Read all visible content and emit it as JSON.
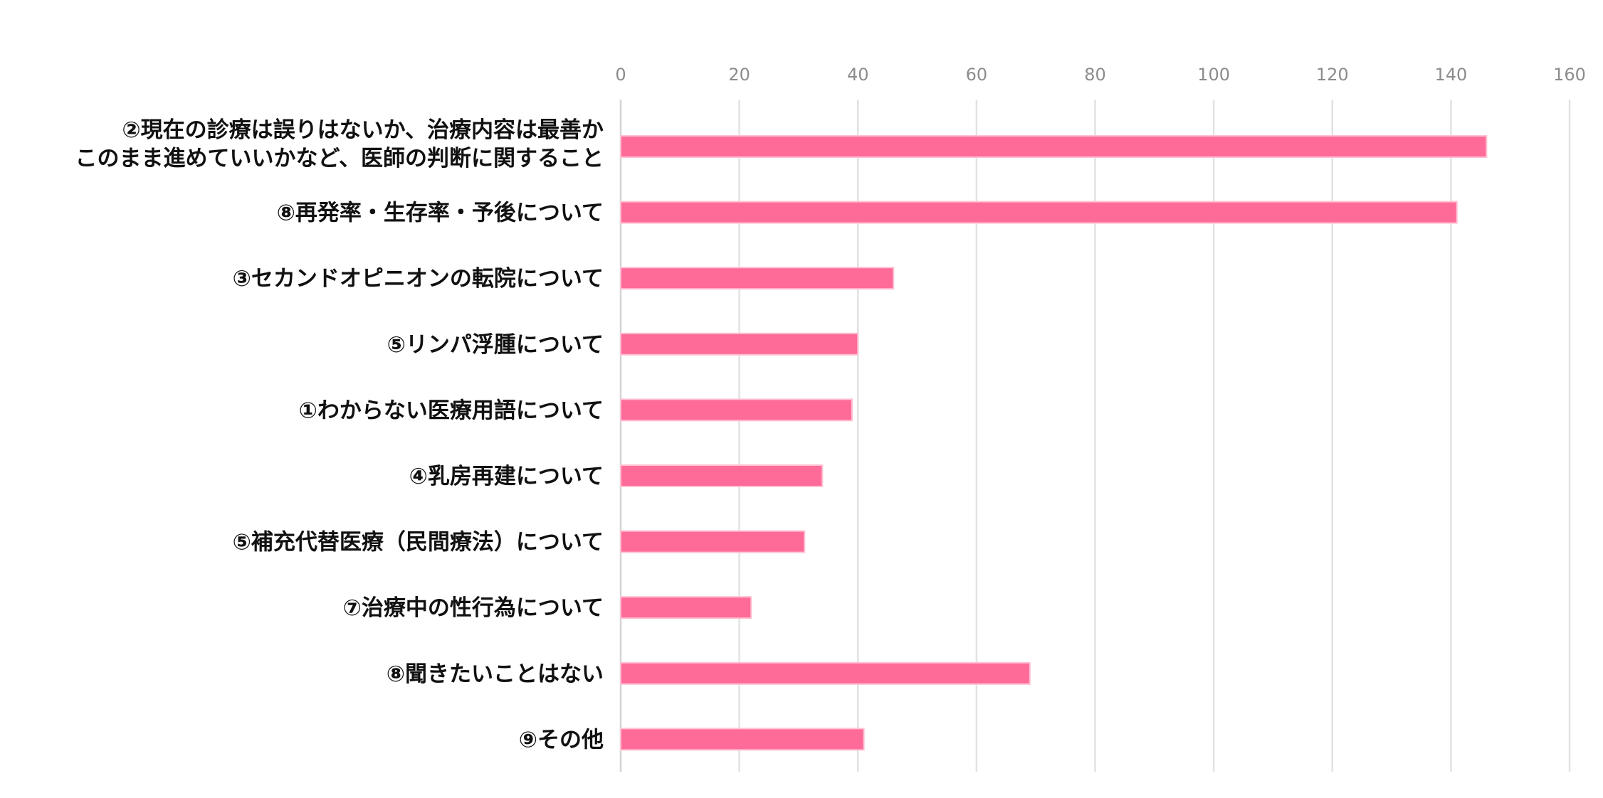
{
  "chart_data": {
    "type": "bar",
    "orientation": "horizontal",
    "x_axis_position": "top",
    "title": "",
    "xlabel": "",
    "ylabel": "",
    "xlim": [
      0,
      160
    ],
    "ticks": [
      0,
      20,
      40,
      60,
      80,
      100,
      120,
      140,
      160
    ],
    "grid": true,
    "legend": "none",
    "bar_color": "#ff6b98",
    "categories": [
      [
        "②現在の診療は誤りはないか、治療内容は最善か",
        "このまま進めていいかなど、医師の判断に関すること"
      ],
      [
        "⑧再発率・生存率・予後について"
      ],
      [
        "③セカンドオピニオンの転院について"
      ],
      [
        "⑤リンパ浮腫について"
      ],
      [
        "①わからない医療用語について"
      ],
      [
        "④乳房再建について"
      ],
      [
        "⑤補充代替医療（民間療法）について"
      ],
      [
        "⑦治療中の性行為について"
      ],
      [
        "⑧聞きたいことはない"
      ],
      [
        "⑨その他"
      ]
    ],
    "values": [
      146,
      141,
      46,
      40,
      39,
      34,
      31,
      22,
      69,
      41
    ]
  }
}
